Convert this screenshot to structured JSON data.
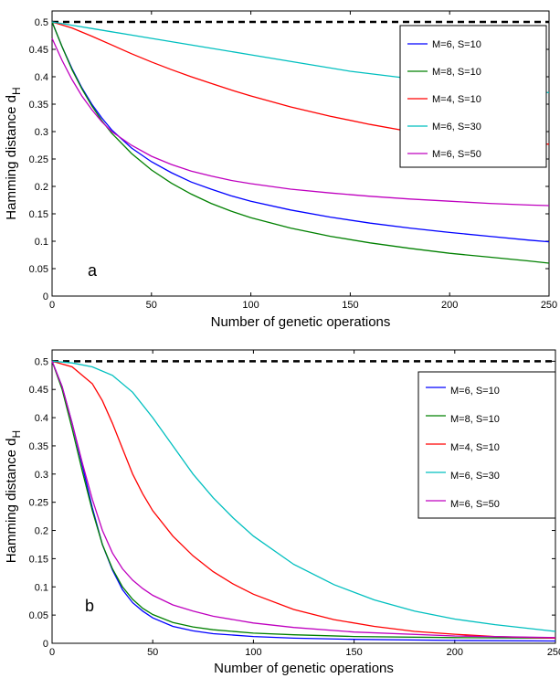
{
  "chart_data": [
    {
      "type": "line",
      "panel_label": "a",
      "xlabel": "Number of genetic operations",
      "ylabel": "Hamming distance d",
      "ylabel_sub": "H",
      "xlim": [
        0,
        250
      ],
      "ylim": [
        0,
        0.52
      ],
      "xticks": [
        "0",
        "50",
        "100",
        "150",
        "200",
        "250"
      ],
      "yticks": [
        "0",
        "0.05",
        "0.1",
        "0.15",
        "0.2",
        "0.25",
        "0.3",
        "0.35",
        "0.4",
        "0.45",
        "0.5"
      ],
      "legend_position": "top-right",
      "reference_line": {
        "y": 0.5,
        "style": "dashed",
        "color": "#000000"
      },
      "series": [
        {
          "name": "M=6, S=10",
          "color": "#0000ff",
          "x": [
            0,
            5,
            10,
            15,
            20,
            25,
            30,
            40,
            50,
            60,
            70,
            80,
            90,
            100,
            120,
            140,
            160,
            180,
            200,
            220,
            240,
            250
          ],
          "y": [
            0.5,
            0.455,
            0.415,
            0.38,
            0.35,
            0.325,
            0.303,
            0.27,
            0.245,
            0.225,
            0.208,
            0.195,
            0.183,
            0.173,
            0.157,
            0.144,
            0.133,
            0.124,
            0.116,
            0.109,
            0.102,
            0.099
          ]
        },
        {
          "name": "M=8, S=10",
          "color": "#008000",
          "x": [
            0,
            5,
            10,
            15,
            20,
            25,
            30,
            40,
            50,
            60,
            70,
            80,
            90,
            100,
            120,
            140,
            160,
            180,
            200,
            220,
            240,
            250
          ],
          "y": [
            0.5,
            0.455,
            0.413,
            0.378,
            0.347,
            0.32,
            0.297,
            0.26,
            0.23,
            0.206,
            0.186,
            0.169,
            0.155,
            0.143,
            0.124,
            0.109,
            0.097,
            0.087,
            0.078,
            0.071,
            0.064,
            0.06
          ]
        },
        {
          "name": "M=4, S=10",
          "color": "#ff0000",
          "x": [
            0,
            10,
            20,
            30,
            40,
            50,
            60,
            70,
            80,
            90,
            100,
            120,
            140,
            160,
            180,
            200,
            220,
            240,
            250
          ],
          "y": [
            0.5,
            0.489,
            0.474,
            0.458,
            0.442,
            0.427,
            0.413,
            0.4,
            0.388,
            0.376,
            0.365,
            0.345,
            0.328,
            0.313,
            0.3,
            0.29,
            0.284,
            0.279,
            0.277
          ]
        },
        {
          "name": "M=6, S=30",
          "color": "#00bfbf",
          "x": [
            0,
            10,
            20,
            30,
            40,
            50,
            75,
            100,
            125,
            150,
            175,
            200,
            225,
            250
          ],
          "y": [
            0.5,
            0.494,
            0.488,
            0.482,
            0.476,
            0.47,
            0.455,
            0.44,
            0.425,
            0.41,
            0.399,
            0.388,
            0.379,
            0.371
          ]
        },
        {
          "name": "M=6, S=50",
          "color": "#bf00bf",
          "x": [
            0,
            5,
            10,
            15,
            20,
            25,
            30,
            40,
            50,
            60,
            70,
            80,
            90,
            100,
            120,
            140,
            160,
            180,
            200,
            220,
            240,
            250
          ],
          "y": [
            0.47,
            0.43,
            0.395,
            0.365,
            0.34,
            0.318,
            0.3,
            0.275,
            0.255,
            0.24,
            0.228,
            0.219,
            0.211,
            0.205,
            0.195,
            0.188,
            0.182,
            0.177,
            0.173,
            0.169,
            0.166,
            0.165
          ]
        }
      ]
    },
    {
      "type": "line",
      "panel_label": "b",
      "xlabel": "Number of genetic operations",
      "ylabel": "Hamming distance d",
      "ylabel_sub": "H",
      "xlim": [
        0,
        250
      ],
      "ylim": [
        0,
        0.52
      ],
      "xticks": [
        "0",
        "50",
        "100",
        "150",
        "200",
        "250"
      ],
      "yticks": [
        "0",
        "0.05",
        "0.1",
        "0.15",
        "0.2",
        "0.25",
        "0.3",
        "0.35",
        "0.4",
        "0.45",
        "0.5"
      ],
      "legend_position": "top-right",
      "reference_line": {
        "y": 0.5,
        "style": "dashed",
        "color": "#000000"
      },
      "series": [
        {
          "name": "M=6, S=10",
          "color": "#0000ff",
          "x": [
            0,
            5,
            10,
            15,
            20,
            25,
            30,
            35,
            40,
            45,
            50,
            60,
            70,
            80,
            100,
            120,
            150,
            200,
            250
          ],
          "y": [
            0.5,
            0.455,
            0.39,
            0.315,
            0.24,
            0.175,
            0.13,
            0.095,
            0.072,
            0.057,
            0.045,
            0.03,
            0.022,
            0.017,
            0.012,
            0.009,
            0.007,
            0.005,
            0.004
          ]
        },
        {
          "name": "M=8, S=10",
          "color": "#008000",
          "x": [
            0,
            5,
            10,
            15,
            20,
            25,
            30,
            35,
            40,
            45,
            50,
            60,
            70,
            80,
            100,
            120,
            150,
            200,
            250
          ],
          "y": [
            0.5,
            0.45,
            0.38,
            0.305,
            0.235,
            0.175,
            0.132,
            0.1,
            0.078,
            0.062,
            0.051,
            0.037,
            0.029,
            0.024,
            0.018,
            0.015,
            0.012,
            0.01,
            0.009
          ]
        },
        {
          "name": "M=4, S=10",
          "color": "#ff0000",
          "x": [
            0,
            10,
            20,
            25,
            30,
            35,
            40,
            45,
            50,
            60,
            70,
            80,
            90,
            100,
            120,
            140,
            160,
            180,
            200,
            220,
            250
          ],
          "y": [
            0.5,
            0.49,
            0.46,
            0.43,
            0.39,
            0.345,
            0.3,
            0.265,
            0.235,
            0.19,
            0.155,
            0.127,
            0.105,
            0.087,
            0.06,
            0.042,
            0.03,
            0.021,
            0.016,
            0.012,
            0.009
          ]
        },
        {
          "name": "M=6, S=30",
          "color": "#00bfbf",
          "x": [
            0,
            10,
            20,
            30,
            40,
            50,
            60,
            70,
            80,
            90,
            100,
            120,
            140,
            160,
            180,
            200,
            220,
            250
          ],
          "y": [
            0.5,
            0.497,
            0.49,
            0.475,
            0.445,
            0.4,
            0.35,
            0.3,
            0.258,
            0.222,
            0.19,
            0.14,
            0.104,
            0.077,
            0.057,
            0.043,
            0.033,
            0.021
          ]
        },
        {
          "name": "M=6, S=50",
          "color": "#bf00bf",
          "x": [
            0,
            5,
            10,
            15,
            20,
            25,
            30,
            35,
            40,
            45,
            50,
            60,
            70,
            80,
            100,
            120,
            150,
            200,
            250
          ],
          "y": [
            0.5,
            0.455,
            0.39,
            0.32,
            0.255,
            0.2,
            0.16,
            0.132,
            0.112,
            0.097,
            0.085,
            0.068,
            0.057,
            0.048,
            0.036,
            0.028,
            0.02,
            0.013,
            0.01
          ]
        }
      ]
    }
  ]
}
